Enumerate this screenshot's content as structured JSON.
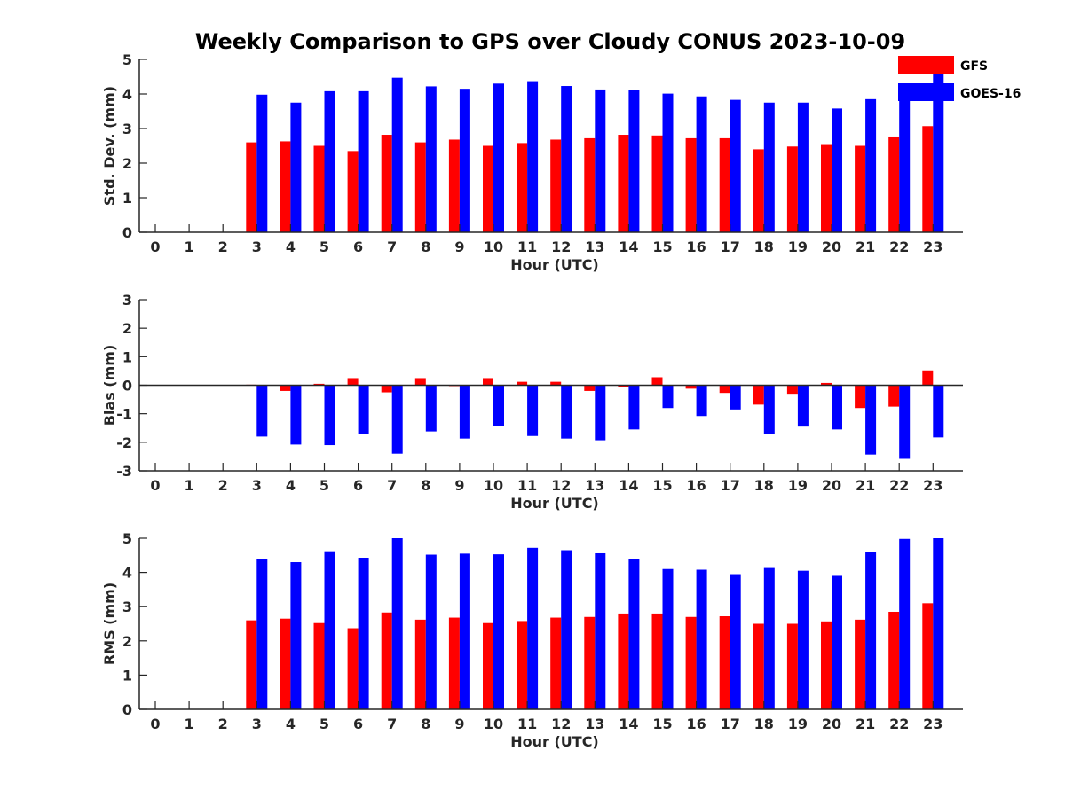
{
  "figure": {
    "title": "Weekly Comparison to GPS over Cloudy CONUS 2023-10-09",
    "legend": {
      "placement": "top-right",
      "entries": [
        {
          "name": "GFS",
          "color": "#ff0000"
        },
        {
          "name": "GOES-16",
          "color": "#0000ff"
        }
      ]
    }
  },
  "chart_data": [
    {
      "type": "bar",
      "ylabel": "Std. Dev. (mm)",
      "xlabel": "Hour (UTC)",
      "ylim": [
        0,
        5
      ],
      "yticks": [
        0,
        1,
        2,
        3,
        4,
        5
      ],
      "categories": [
        "0",
        "1",
        "2",
        "3",
        "4",
        "5",
        "6",
        "7",
        "8",
        "9",
        "10",
        "11",
        "12",
        "13",
        "14",
        "15",
        "16",
        "17",
        "18",
        "19",
        "20",
        "21",
        "22",
        "23"
      ],
      "series": [
        {
          "name": "GFS",
          "color": "#ff0000",
          "values": [
            null,
            null,
            null,
            2.6,
            2.63,
            2.5,
            2.35,
            2.82,
            2.6,
            2.68,
            2.5,
            2.58,
            2.68,
            2.72,
            2.82,
            2.8,
            2.72,
            2.72,
            2.4,
            2.48,
            2.55,
            2.5,
            2.77,
            3.07
          ]
        },
        {
          "name": "GOES-16",
          "color": "#0000ff",
          "values": [
            null,
            null,
            null,
            3.98,
            3.75,
            4.08,
            4.08,
            4.47,
            4.22,
            4.15,
            4.3,
            4.37,
            4.23,
            4.13,
            4.12,
            4.01,
            3.93,
            3.83,
            3.75,
            3.75,
            3.58,
            3.85,
            4.2,
            4.6
          ]
        }
      ]
    },
    {
      "type": "bar",
      "ylabel": "Bias (mm)",
      "xlabel": "Hour (UTC)",
      "ylim": [
        -3,
        3
      ],
      "yticks": [
        -3,
        -2,
        -1,
        0,
        1,
        2,
        3
      ],
      "categories": [
        "0",
        "1",
        "2",
        "3",
        "4",
        "5",
        "6",
        "7",
        "8",
        "9",
        "10",
        "11",
        "12",
        "13",
        "14",
        "15",
        "16",
        "17",
        "18",
        "19",
        "20",
        "21",
        "22",
        "23"
      ],
      "series": [
        {
          "name": "GFS",
          "color": "#ff0000",
          "values": [
            null,
            null,
            null,
            0.02,
            -0.2,
            0.05,
            0.25,
            -0.25,
            0.25,
            -0.03,
            0.25,
            0.12,
            0.12,
            -0.2,
            -0.07,
            0.28,
            -0.12,
            -0.27,
            -0.68,
            -0.3,
            0.08,
            -0.8,
            -0.75,
            0.52
          ]
        },
        {
          "name": "GOES-16",
          "color": "#0000ff",
          "values": [
            null,
            null,
            null,
            -1.8,
            -2.08,
            -2.1,
            -1.7,
            -2.4,
            -1.62,
            -1.87,
            -1.42,
            -1.78,
            -1.87,
            -1.93,
            -1.55,
            -0.8,
            -1.08,
            -0.85,
            -1.72,
            -1.45,
            -1.55,
            -2.43,
            -2.58,
            -1.83
          ]
        }
      ]
    },
    {
      "type": "bar",
      "ylabel": "RMS (mm)",
      "xlabel": "Hour (UTC)",
      "ylim": [
        0,
        5
      ],
      "yticks": [
        0,
        1,
        2,
        3,
        4,
        5
      ],
      "categories": [
        "0",
        "1",
        "2",
        "3",
        "4",
        "5",
        "6",
        "7",
        "8",
        "9",
        "10",
        "11",
        "12",
        "13",
        "14",
        "15",
        "16",
        "17",
        "18",
        "19",
        "20",
        "21",
        "22",
        "23"
      ],
      "series": [
        {
          "name": "GFS",
          "color": "#ff0000",
          "values": [
            null,
            null,
            null,
            2.6,
            2.65,
            2.52,
            2.37,
            2.83,
            2.62,
            2.68,
            2.52,
            2.58,
            2.68,
            2.7,
            2.8,
            2.8,
            2.7,
            2.72,
            2.5,
            2.5,
            2.57,
            2.62,
            2.85,
            3.1
          ]
        },
        {
          "name": "GOES-16",
          "color": "#0000ff",
          "values": [
            null,
            null,
            null,
            4.38,
            4.3,
            4.62,
            4.43,
            5.0,
            4.52,
            4.55,
            4.53,
            4.72,
            4.65,
            4.56,
            4.4,
            4.1,
            4.08,
            3.95,
            4.13,
            4.05,
            3.9,
            4.6,
            4.98,
            5.0
          ]
        }
      ]
    }
  ]
}
